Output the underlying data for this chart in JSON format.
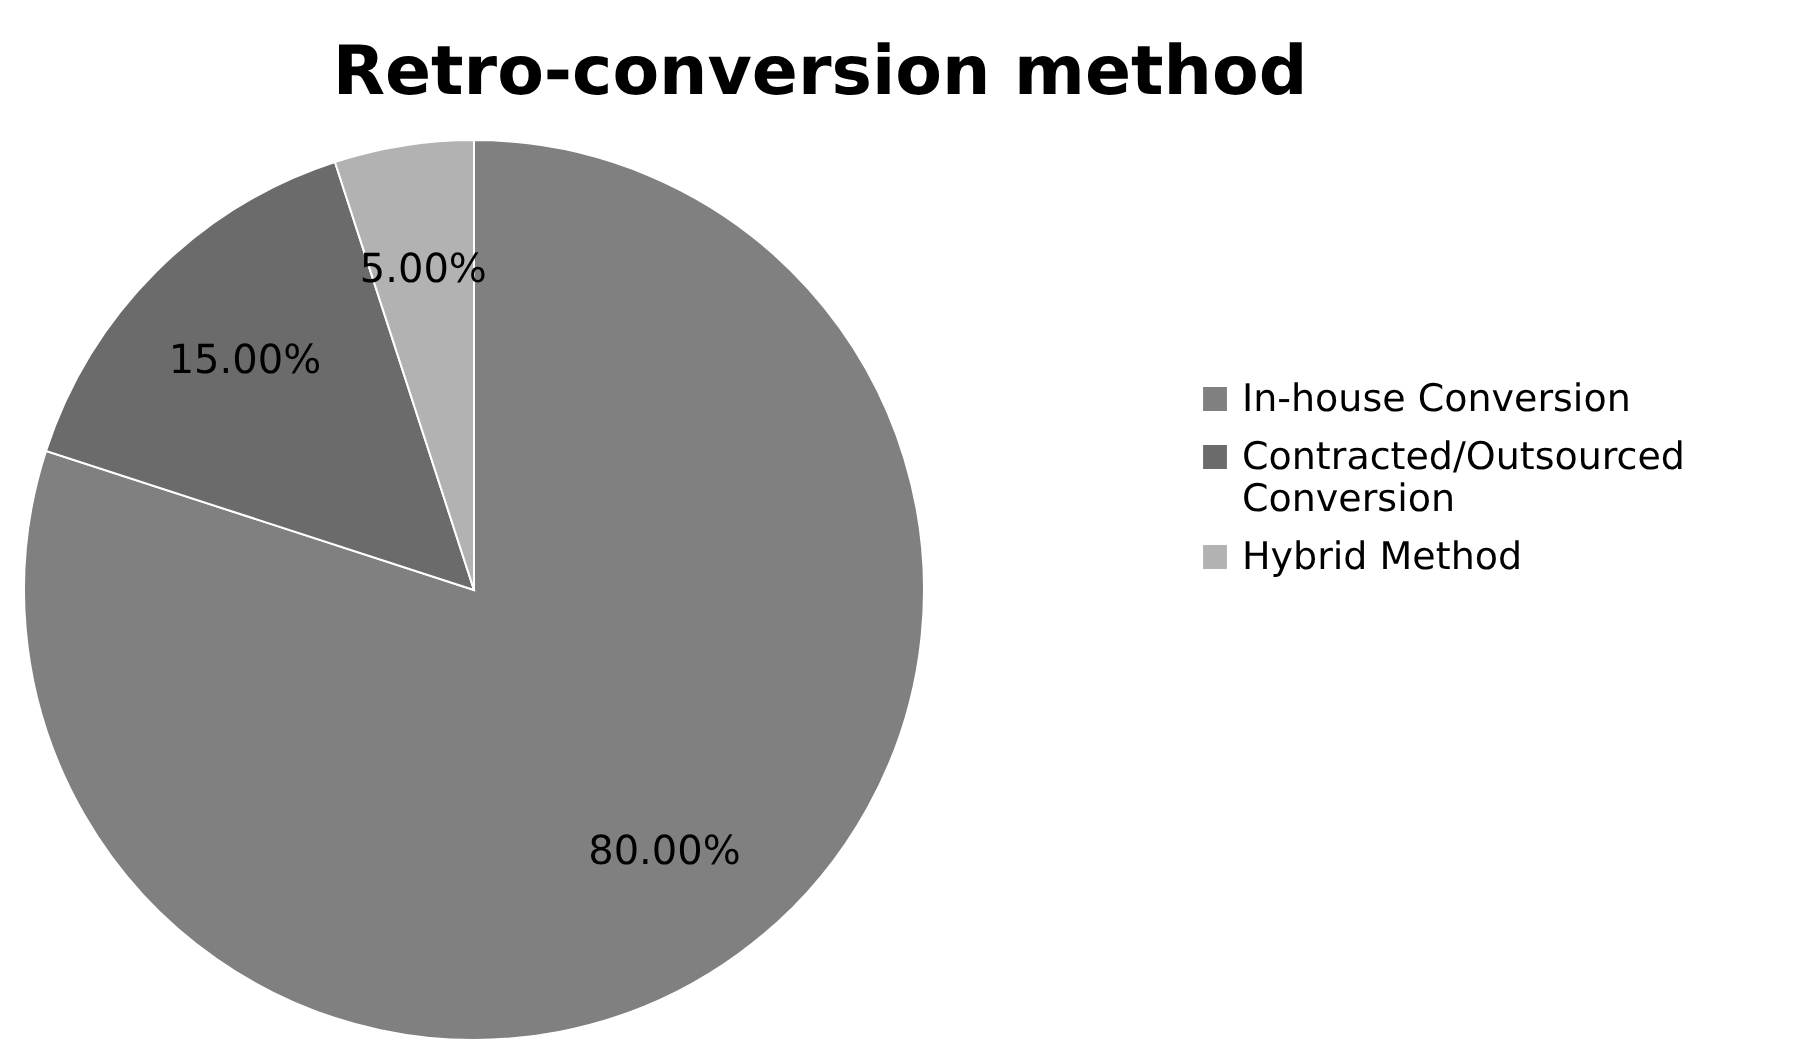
{
  "chart_data": {
    "type": "pie",
    "title": "Retro-conversion method",
    "categories": [
      "In-house Conversion",
      "Contracted/Outsourced Conversion",
      "Hybrid Method"
    ],
    "values": [
      80,
      15,
      5
    ],
    "colors": [
      "#808080",
      "#6b6b6b",
      "#b2b2b2"
    ],
    "value_labels": [
      "80.00%",
      "15.00%",
      "5.00%"
    ],
    "legend": "right"
  }
}
